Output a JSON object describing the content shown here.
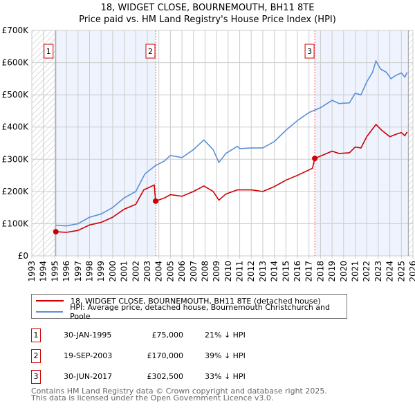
{
  "chart_data": {
    "type": "line",
    "title": "18, WIDGET CLOSE, BOURNEMOUTH, BH11 8TE",
    "subtitle": "Price paid vs. HM Land Registry's House Price Index (HPI)",
    "xlim": [
      1993,
      2026
    ],
    "ylim": [
      0,
      700000
    ],
    "x_ticks": [
      "1993",
      "1994",
      "1995",
      "1996",
      "1997",
      "1998",
      "1999",
      "2000",
      "2001",
      "2002",
      "2003",
      "2004",
      "2005",
      "2006",
      "2007",
      "2008",
      "2009",
      "2010",
      "2011",
      "2012",
      "2013",
      "2014",
      "2015",
      "2016",
      "2017",
      "2018",
      "2019",
      "2020",
      "2021",
      "2022",
      "2023",
      "2024",
      "2025",
      "2026"
    ],
    "y_ticks": [
      {
        "v": 0,
        "l": "£0"
      },
      {
        "v": 100000,
        "l": "£100K"
      },
      {
        "v": 200000,
        "l": "£200K"
      },
      {
        "v": 300000,
        "l": "£300K"
      },
      {
        "v": 400000,
        "l": "£400K"
      },
      {
        "v": 500000,
        "l": "£500K"
      },
      {
        "v": 600000,
        "l": "£600K"
      },
      {
        "v": 700000,
        "l": "£700K"
      }
    ],
    "grid": true,
    "series": [
      {
        "name": "18, WIDGET CLOSE, BOURNEMOUTH, BH11 8TE (detached house)",
        "color": "#cc0000",
        "points": [
          [
            1995.08,
            75
          ],
          [
            1996,
            73
          ],
          [
            1997,
            79
          ],
          [
            1998,
            96
          ],
          [
            1999,
            104
          ],
          [
            2000,
            120
          ],
          [
            2001,
            145
          ],
          [
            2002,
            160
          ],
          [
            2002.7,
            205
          ],
          [
            2003.6,
            220
          ],
          [
            2003.72,
            170
          ],
          [
            2004.5,
            180
          ],
          [
            2005,
            190
          ],
          [
            2006,
            185
          ],
          [
            2007,
            200
          ],
          [
            2007.9,
            217
          ],
          [
            2008.7,
            200
          ],
          [
            2009.2,
            173
          ],
          [
            2009.8,
            192
          ],
          [
            2010.8,
            205
          ],
          [
            2012,
            205
          ],
          [
            2013,
            200
          ],
          [
            2014,
            215
          ],
          [
            2015,
            235
          ],
          [
            2016,
            250
          ],
          [
            2017.3,
            272
          ],
          [
            2017.5,
            302
          ],
          [
            2018,
            310
          ],
          [
            2019,
            325
          ],
          [
            2019.6,
            318
          ],
          [
            2020.5,
            320
          ],
          [
            2021,
            338
          ],
          [
            2021.5,
            335
          ],
          [
            2022,
            370
          ],
          [
            2022.8,
            408
          ],
          [
            2023.3,
            390
          ],
          [
            2024,
            370
          ],
          [
            2024.5,
            377
          ],
          [
            2025,
            383
          ],
          [
            2025.3,
            373
          ],
          [
            2025.5,
            385
          ]
        ]
      },
      {
        "name": "HPI: Average price, detached house, Bournemouth Christchurch and Poole",
        "color": "#5b8fd6",
        "points": [
          [
            1995.08,
            95
          ],
          [
            1996,
            93
          ],
          [
            1997,
            100
          ],
          [
            1998,
            120
          ],
          [
            1999,
            130
          ],
          [
            2000,
            150
          ],
          [
            2001,
            180
          ],
          [
            2002,
            200
          ],
          [
            2002.8,
            255
          ],
          [
            2003.7,
            280
          ],
          [
            2004.5,
            295
          ],
          [
            2005,
            312
          ],
          [
            2006,
            305
          ],
          [
            2007,
            330
          ],
          [
            2007.9,
            360
          ],
          [
            2008.7,
            330
          ],
          [
            2009.2,
            290
          ],
          [
            2009.8,
            318
          ],
          [
            2010.8,
            340
          ],
          [
            2011,
            333
          ],
          [
            2012,
            335
          ],
          [
            2013,
            335
          ],
          [
            2014,
            355
          ],
          [
            2015,
            390
          ],
          [
            2016,
            420
          ],
          [
            2017,
            445
          ],
          [
            2018,
            460
          ],
          [
            2019,
            483
          ],
          [
            2019.6,
            473
          ],
          [
            2020.5,
            475
          ],
          [
            2021,
            505
          ],
          [
            2021.5,
            500
          ],
          [
            2022,
            540
          ],
          [
            2022.5,
            570
          ],
          [
            2022.8,
            605
          ],
          [
            2023.2,
            580
          ],
          [
            2023.7,
            570
          ],
          [
            2024.1,
            550
          ],
          [
            2024.5,
            560
          ],
          [
            2025,
            568
          ],
          [
            2025.3,
            555
          ],
          [
            2025.5,
            570
          ]
        ]
      }
    ],
    "sales": [
      {
        "n": "1",
        "x": 1995.08,
        "y": 75000
      },
      {
        "n": "2",
        "x": 2003.72,
        "y": 170000
      },
      {
        "n": "3",
        "x": 2017.5,
        "y": 302500
      }
    ]
  },
  "legend": {
    "red": "18, WIDGET CLOSE, BOURNEMOUTH, BH11 8TE (detached house)",
    "blue": "HPI: Average price, detached house, Bournemouth Christchurch and Poole"
  },
  "table": [
    {
      "n": "1",
      "date": "30-JAN-1995",
      "price": "£75,000",
      "hpi": "21% ↓ HPI"
    },
    {
      "n": "2",
      "date": "19-SEP-2003",
      "price": "£170,000",
      "hpi": "39% ↓ HPI"
    },
    {
      "n": "3",
      "date": "30-JUN-2017",
      "price": "£302,500",
      "hpi": "33% ↓ HPI"
    }
  ],
  "footer": {
    "line1": "Contains HM Land Registry data © Crown copyright and database right 2025.",
    "line2": "This data is licensed under the Open Government Licence v3.0."
  }
}
